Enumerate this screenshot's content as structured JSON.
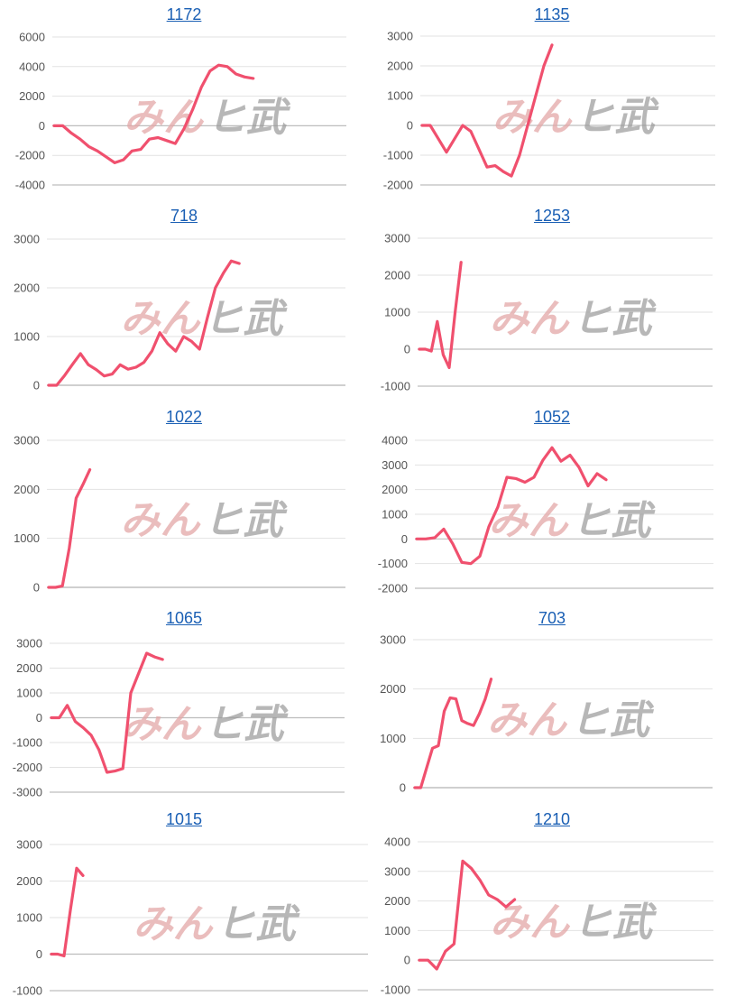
{
  "watermark": {
    "part1": "みん",
    "part2": "ヒ武"
  },
  "colors": {
    "series": "#f0506e",
    "link": "#1a5fb4",
    "grid": "#e2e2e2",
    "zero_line": "#bdbdbd"
  },
  "chart_data": [
    {
      "type": "line",
      "title": "1172",
      "grid": true,
      "y_ticks": [
        6000,
        4000,
        2000,
        0,
        -2000,
        -4000
      ],
      "ylim": [
        -4000,
        6000
      ],
      "series": [
        {
          "values": [
            0,
            0,
            -500,
            -900,
            -1400,
            -1700,
            -2100,
            -2500,
            -2300,
            -1700,
            -1600,
            -900,
            -800,
            -1000,
            -1200,
            -200,
            1100,
            2600,
            3700,
            4100,
            4000,
            3500,
            3300,
            3200
          ]
        }
      ]
    },
    {
      "type": "line",
      "title": "1135",
      "grid": true,
      "y_ticks": [
        3000,
        2000,
        1000,
        0,
        -1000,
        -2000
      ],
      "ylim": [
        -2000,
        3000
      ],
      "series": [
        {
          "values": [
            0,
            0,
            -450,
            -900,
            -450,
            0,
            -200,
            -800,
            -1400,
            -1350,
            -1550,
            -1700,
            -1000,
            0,
            1000,
            2000,
            2700
          ]
        }
      ]
    },
    {
      "type": "line",
      "title": "718",
      "grid": true,
      "y_ticks": [
        3000,
        2000,
        1000,
        0
      ],
      "ylim": [
        0,
        3000
      ],
      "series": [
        {
          "values": [
            0,
            0,
            200,
            430,
            650,
            420,
            320,
            190,
            230,
            420,
            330,
            370,
            470,
            700,
            1080,
            850,
            700,
            1000,
            900,
            740,
            1390,
            2000,
            2300,
            2550,
            2500
          ]
        }
      ]
    },
    {
      "type": "line",
      "title": "1253",
      "grid": true,
      "y_ticks": [
        3000,
        2000,
        1000,
        0,
        -1000
      ],
      "ylim": [
        -1000,
        3000
      ],
      "series": [
        {
          "values": [
            0,
            0,
            -50,
            750,
            -150,
            -500,
            1000,
            2350
          ]
        }
      ]
    },
    {
      "type": "line",
      "title": "1022",
      "grid": true,
      "y_ticks": [
        3000,
        2000,
        1000,
        0
      ],
      "ylim": [
        0,
        3000
      ],
      "series": [
        {
          "values": [
            0,
            0,
            30,
            800,
            1820,
            2100,
            2400
          ]
        }
      ]
    },
    {
      "type": "line",
      "title": "1052",
      "grid": true,
      "y_ticks": [
        4000,
        3000,
        2000,
        1000,
        0,
        -1000,
        -2000
      ],
      "ylim": [
        -2000,
        4000
      ],
      "series": [
        {
          "values": [
            0,
            0,
            50,
            400,
            -200,
            -950,
            -1000,
            -700,
            500,
            1300,
            2500,
            2450,
            2300,
            2500,
            3200,
            3700,
            3150,
            3400,
            2900,
            2150,
            2650,
            2400
          ]
        }
      ]
    },
    {
      "type": "line",
      "title": "1065",
      "grid": true,
      "y_ticks": [
        3000,
        2000,
        1000,
        0,
        -1000,
        -2000,
        -3000
      ],
      "ylim": [
        -3000,
        3000
      ],
      "series": [
        {
          "values": [
            0,
            0,
            500,
            -150,
            -400,
            -700,
            -1300,
            -2200,
            -2150,
            -2050,
            1000,
            1800,
            2600,
            2450,
            2350
          ]
        }
      ]
    },
    {
      "type": "line",
      "title": "703",
      "grid": true,
      "y_ticks": [
        3000,
        2000,
        1000,
        0
      ],
      "ylim": [
        0,
        3000
      ],
      "series": [
        {
          "values": [
            0,
            0,
            400,
            800,
            850,
            1550,
            1820,
            1800,
            1360,
            1300,
            1260,
            1500,
            1800,
            2200
          ]
        }
      ]
    },
    {
      "type": "line",
      "title": "1015",
      "grid": true,
      "y_ticks": [
        3000,
        2000,
        1000,
        0,
        -1000
      ],
      "ylim": [
        -1000,
        3000
      ],
      "series": [
        {
          "values": [
            0,
            0,
            -50,
            1200,
            2350,
            2150
          ]
        }
      ]
    },
    {
      "type": "line",
      "title": "1210",
      "grid": true,
      "y_ticks": [
        4000,
        3000,
        2000,
        1000,
        0,
        -1000
      ],
      "ylim": [
        -1000,
        4000
      ],
      "series": [
        {
          "values": [
            0,
            0,
            -300,
            300,
            550,
            3350,
            3100,
            2700,
            2200,
            2050,
            1800,
            2050
          ]
        }
      ]
    }
  ]
}
